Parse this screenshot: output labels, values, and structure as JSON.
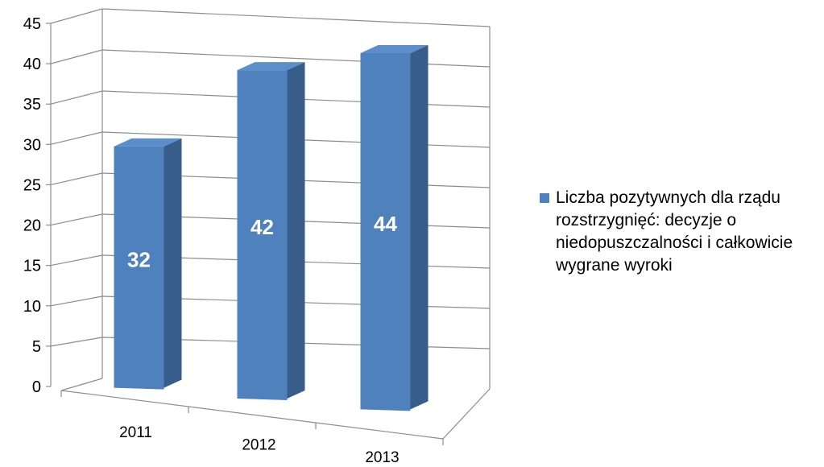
{
  "chart_data": {
    "type": "bar",
    "categories": [
      "2011",
      "2012",
      "2013"
    ],
    "series": [
      {
        "name": "Liczba pozytywnych dla rządu rozstrzygnięć: decyzje o niedopuszczalności i całkowicie wygrane wyroki",
        "values": [
          32,
          42,
          44
        ],
        "data_labels": [
          "32",
          "42",
          "44"
        ]
      }
    ],
    "y_ticks": [
      "0",
      "5",
      "10",
      "15",
      "20",
      "25",
      "30",
      "35",
      "40",
      "45"
    ],
    "ylim": [
      0,
      45
    ],
    "grid": true,
    "legend_position": "right",
    "colors": {
      "bar_front": "#4F81BD",
      "bar_side": "#385D8A",
      "bar_top": "#5B8FCB",
      "grid": "#8C8C8C"
    }
  }
}
